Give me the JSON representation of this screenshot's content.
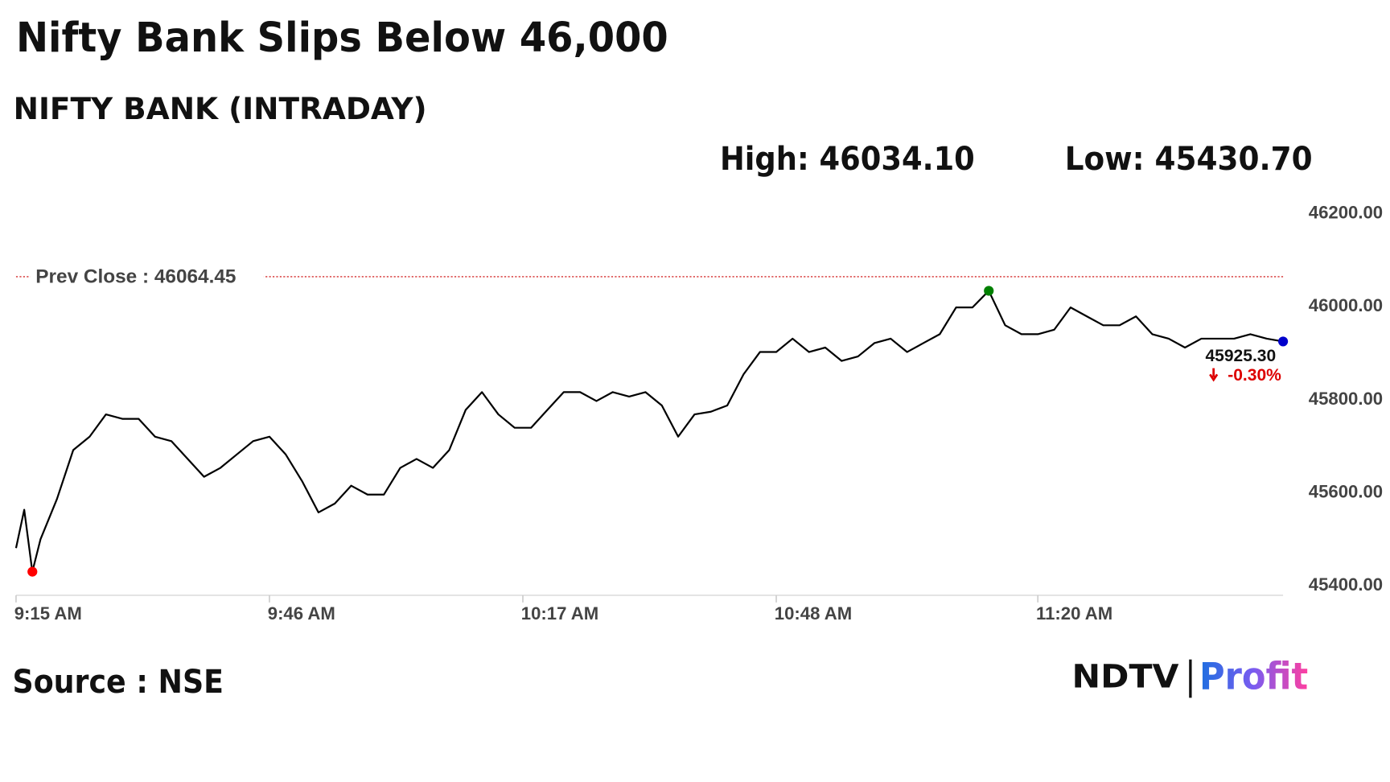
{
  "chart_data": {
    "type": "line",
    "title": "Nifty Bank Slips Below 46,000",
    "subtitle": "NIFTY BANK (INTRADAY)",
    "high_label": "High: 46034.10",
    "low_label": "Low: 45430.70",
    "prev_close": {
      "value": 46064.45,
      "label": "Prev Close : 46064.45"
    },
    "last_label": "45925.30",
    "change_label": "-0.30%",
    "source": "Source : NSE",
    "logo": {
      "left": "NDTV",
      "right": "Profit"
    },
    "color": "#000000",
    "low_color": "#ff0000",
    "high_color": "#008000",
    "last_color": "#0000cc",
    "x": [
      555,
      556,
      557,
      558,
      560,
      562,
      564,
      566,
      568,
      570,
      572,
      574,
      576,
      578,
      580,
      582,
      584,
      586,
      588,
      590,
      592,
      594,
      596,
      598,
      600,
      602,
      604,
      606,
      608,
      610,
      612,
      614,
      616,
      618,
      620,
      622,
      624,
      626,
      628,
      630,
      632,
      634,
      636,
      638,
      640,
      642,
      644,
      646,
      648,
      650,
      652,
      654,
      656,
      658,
      660,
      662,
      664,
      666,
      668,
      670,
      672,
      674,
      676,
      678,
      680,
      682,
      684,
      686,
      688,
      690,
      692,
      694,
      696,
      698,
      700,
      702,
      704,
      706,
      708,
      710
    ],
    "values": [
      45481.5,
      45563.8,
      45430.7,
      45500.6,
      45586.8,
      45692,
      45720.8,
      45768.6,
      45759,
      45759,
      45720.8,
      45711.2,
      45672.9,
      45634.6,
      45653.8,
      45682.5,
      45711.2,
      45720.8,
      45682.5,
      45625,
      45558,
      45577.2,
      45615.5,
      45596.3,
      45596.3,
      45653.8,
      45672.9,
      45653.8,
      45692,
      45778.2,
      45816.5,
      45768.6,
      45739.9,
      45739.9,
      45778.2,
      45816.5,
      45816.5,
      45797.3,
      45816.5,
      45806.9,
      45816.5,
      45787.8,
      45720.8,
      45768.6,
      45774.4,
      45787.8,
      45854.8,
      45902.6,
      45902.6,
      45931.4,
      45902.6,
      45912.2,
      45883.5,
      45893.1,
      45921.8,
      45931.4,
      45902.6,
      45921.8,
      45940.9,
      45998.4,
      45998.4,
      46034.1,
      45960.1,
      45940.9,
      45940.9,
      45950.5,
      45998.4,
      45979.2,
      45960.1,
      45960.1,
      45979.2,
      45940.9,
      45931.4,
      45912.2,
      45931.4,
      45931.4,
      45931.4,
      45940.9,
      45931.4,
      45925.3
    ],
    "xlim": [
      555,
      710
    ],
    "xticks": [
      {
        "value": 555,
        "label": "9:15 AM"
      },
      {
        "value": 586,
        "label": "9:46 AM"
      },
      {
        "value": 617,
        "label": "10:17 AM"
      },
      {
        "value": 648,
        "label": "10:48 AM"
      },
      {
        "value": 680,
        "label": "11:20 AM"
      }
    ],
    "ylim": [
      45380,
      46230
    ],
    "yticks": [
      {
        "value": 45400,
        "label": "45400.00"
      },
      {
        "value": 45600,
        "label": "45600.00"
      },
      {
        "value": 45800,
        "label": "45800.00"
      },
      {
        "value": 46000,
        "label": "46000.00"
      },
      {
        "value": 46200,
        "label": "46200.00"
      }
    ],
    "grid": false
  }
}
